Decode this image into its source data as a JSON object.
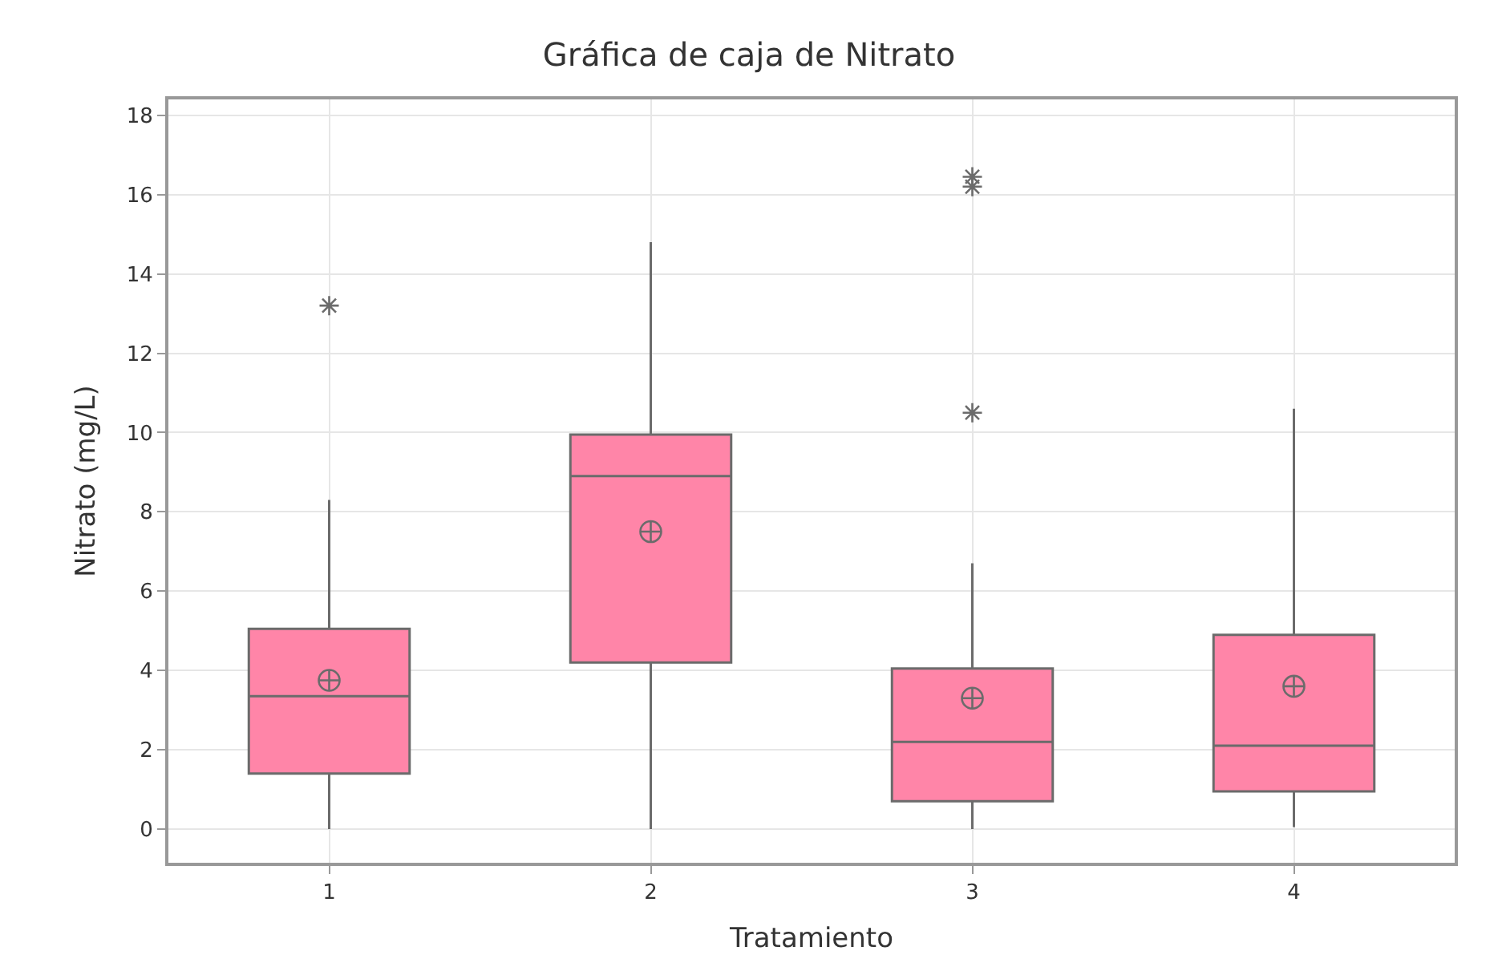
{
  "chart_data": {
    "type": "box",
    "title": "Gráfica de caja de Nitrato",
    "xlabel": "Tratamiento",
    "ylabel": "Nitrato (mg/L)",
    "categories": [
      "1",
      "2",
      "3",
      "4"
    ],
    "series": [
      {
        "color": "#ff85a8",
        "boxes": [
          {
            "low": 0,
            "q1": 1.4,
            "median": 3.35,
            "q3": 5.05,
            "high": 8.3,
            "mean": 3.75,
            "outliers": [
              13.2
            ]
          },
          {
            "low": 0,
            "q1": 4.2,
            "median": 8.9,
            "q3": 9.95,
            "high": 14.8,
            "mean": 7.5
          },
          {
            "low": 0,
            "q1": 0.7,
            "median": 2.2,
            "q3": 4.05,
            "high": 6.7,
            "mean": 3.3,
            "outliers": [
              10.5,
              16.2,
              16.45
            ]
          },
          {
            "low": 0.05,
            "q1": 0.95,
            "median": 2.1,
            "q3": 4.9,
            "high": 10.6,
            "mean": 3.6
          }
        ]
      }
    ],
    "ylim": [
      -0.85,
      18.4
    ],
    "yticks": [
      0,
      2,
      4,
      6,
      8,
      10,
      12,
      14,
      16,
      18
    ],
    "grid": true
  }
}
